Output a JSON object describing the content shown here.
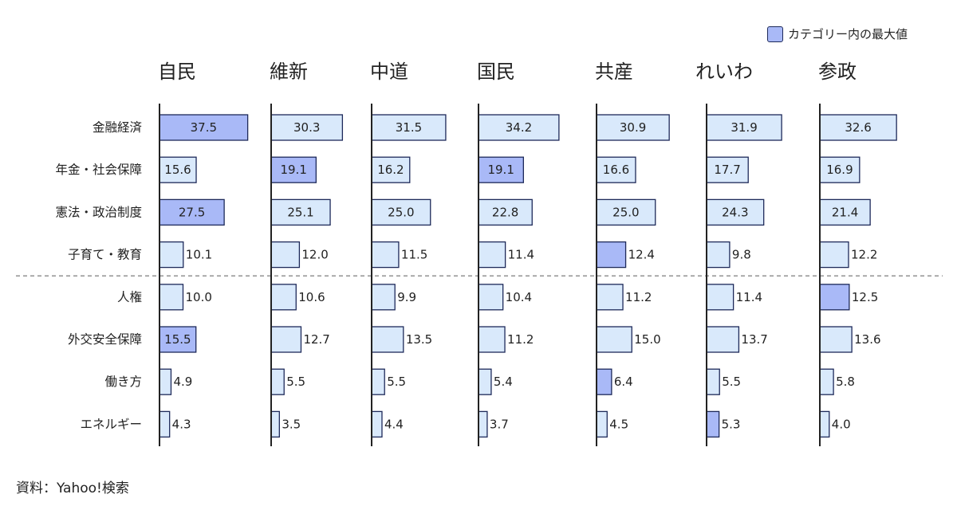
{
  "legend": {
    "label": "カテゴリー内の最大値"
  },
  "source": "資料：Yahoo!検索",
  "colors": {
    "max_fill": "#a9b9f7",
    "normal_fill": "#d9e9fb",
    "stroke": "#1e2a5a",
    "divider": "#888888"
  },
  "chart_data": {
    "type": "bar",
    "orientation": "horizontal",
    "layout": "small-multiples",
    "categories": [
      "金融経済",
      "年金・社会保障",
      "憲法・政治制度",
      "子育て・教育",
      "人権",
      "外交安全保障",
      "働き方",
      "エネルギー"
    ],
    "divider_after_index": 3,
    "series": [
      {
        "name": "自民",
        "values": [
          37.5,
          15.6,
          27.5,
          10.1,
          10.0,
          15.5,
          4.9,
          4.3
        ]
      },
      {
        "name": "維新",
        "values": [
          30.3,
          19.1,
          25.1,
          12.0,
          10.6,
          12.7,
          5.5,
          3.5
        ]
      },
      {
        "name": "中道",
        "values": [
          31.5,
          16.2,
          25.0,
          11.5,
          9.9,
          13.5,
          5.5,
          4.4
        ]
      },
      {
        "name": "国民",
        "values": [
          34.2,
          19.1,
          22.8,
          11.4,
          10.4,
          11.2,
          5.4,
          3.7
        ]
      },
      {
        "name": "共産",
        "values": [
          30.9,
          16.6,
          25.0,
          12.4,
          11.2,
          15.0,
          6.4,
          4.5
        ]
      },
      {
        "name": "れいわ",
        "values": [
          31.9,
          17.7,
          24.3,
          9.8,
          11.4,
          13.7,
          5.5,
          5.3
        ]
      },
      {
        "name": "参政",
        "values": [
          32.6,
          16.9,
          21.4,
          12.2,
          12.5,
          13.6,
          5.8,
          4.0
        ]
      }
    ],
    "max_in_category": [
      [
        "自民"
      ],
      [
        "維新",
        "国民"
      ],
      [
        "自民"
      ],
      [
        "共産"
      ],
      [
        "参政"
      ],
      [
        "自民"
      ],
      [
        "共産"
      ],
      [
        "れいわ"
      ]
    ],
    "value_format": "one_decimal"
  }
}
